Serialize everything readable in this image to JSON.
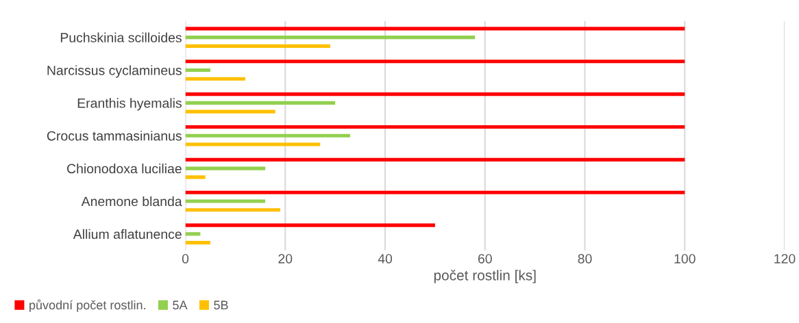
{
  "chart_data": {
    "type": "bar",
    "orientation": "horizontal",
    "categories": [
      "Puchskinia scilloides",
      "Narcissus cyclamineus",
      "Eranthis hyemalis",
      "Crocus tammasinianus",
      "Chionodoxa luciliae",
      "Anemone blanda",
      "Allium aflatunence"
    ],
    "series": [
      {
        "name": "původní počet rostlin.",
        "color": "#ff0000",
        "values": [
          100,
          100,
          100,
          100,
          100,
          100,
          50
        ]
      },
      {
        "name": "5A",
        "color": "#92d050",
        "values": [
          58,
          5,
          30,
          33,
          16,
          16,
          3
        ]
      },
      {
        "name": "5B",
        "color": "#ffc000",
        "values": [
          29,
          12,
          18,
          27,
          4,
          19,
          5
        ]
      }
    ],
    "xlabel": "počet rostlin [ks]",
    "xlim": [
      0,
      120
    ],
    "xticks": [
      0,
      20,
      40,
      60,
      80,
      100,
      120
    ],
    "grid": "x",
    "legend": "bottom left"
  }
}
